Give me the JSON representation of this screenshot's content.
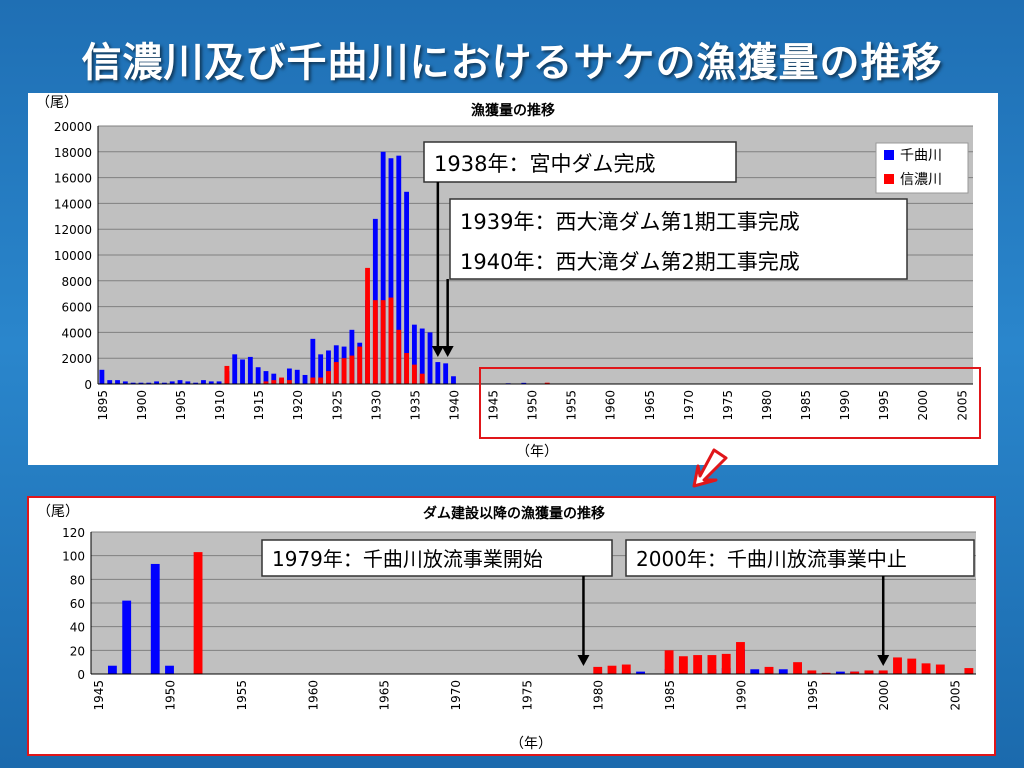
{
  "slide": {
    "title": "信濃川及び千曲川におけるサケの漁獲量の推移"
  },
  "colors": {
    "chikuma": "#0000ff",
    "shinano": "#ff0000",
    "plot_bg": "#c0c0c0",
    "highlight_border": "#e0161a"
  },
  "chart_data": [
    {
      "type": "bar",
      "title": "漁獲量の推移",
      "ylabel": "（尾）",
      "xlabel": "（年）",
      "ylim": [
        0,
        20000
      ],
      "yticks": [
        "0",
        "2000",
        "4000",
        "6000",
        "8000",
        "10000",
        "12000",
        "14000",
        "16000",
        "18000",
        "20000"
      ],
      "x_range": [
        1895,
        2006
      ],
      "x_tick_labels": [
        "1895",
        "1900",
        "1905",
        "1910",
        "1915",
        "1920",
        "1925",
        "1930",
        "1935",
        "1940",
        "1945",
        "1950",
        "1955",
        "1960",
        "1965",
        "1970",
        "1975",
        "1980",
        "1985",
        "1990",
        "1995",
        "2000",
        "2005"
      ],
      "legend": {
        "position": "top-right",
        "items": [
          "千曲川",
          "信濃川"
        ]
      },
      "annotations": [
        "1938年：宮中ダム完成",
        "1939年：西大滝ダム第1期工事完成",
        "1940年：西大滝ダム第2期工事完成"
      ],
      "series": [
        {
          "name": "千曲川",
          "color": "#0000ff",
          "points": [
            [
              1895,
              1100
            ],
            [
              1896,
              300
            ],
            [
              1897,
              300
            ],
            [
              1898,
              200
            ],
            [
              1899,
              100
            ],
            [
              1900,
              100
            ],
            [
              1901,
              100
            ],
            [
              1902,
              200
            ],
            [
              1903,
              100
            ],
            [
              1904,
              200
            ],
            [
              1905,
              300
            ],
            [
              1906,
              200
            ],
            [
              1907,
              100
            ],
            [
              1908,
              300
            ],
            [
              1909,
              200
            ],
            [
              1910,
              200
            ],
            [
              1911,
              1000
            ],
            [
              1912,
              2300
            ],
            [
              1913,
              1900
            ],
            [
              1914,
              2100
            ],
            [
              1915,
              1300
            ],
            [
              1916,
              1000
            ],
            [
              1917,
              800
            ],
            [
              1918,
              400
            ],
            [
              1919,
              1200
            ],
            [
              1920,
              1100
            ],
            [
              1921,
              700
            ],
            [
              1922,
              3500
            ],
            [
              1923,
              2300
            ],
            [
              1924,
              2600
            ],
            [
              1925,
              3000
            ],
            [
              1926,
              2900
            ],
            [
              1927,
              4200
            ],
            [
              1928,
              3200
            ],
            [
              1929,
              6500
            ],
            [
              1930,
              12800
            ],
            [
              1931,
              18000
            ],
            [
              1932,
              17500
            ],
            [
              1933,
              17700
            ],
            [
              1934,
              14900
            ],
            [
              1935,
              4600
            ],
            [
              1936,
              4300
            ],
            [
              1937,
              4000
            ],
            [
              1938,
              1700
            ],
            [
              1939,
              1600
            ],
            [
              1940,
              600
            ],
            [
              1947,
              60
            ],
            [
              1949,
              90
            ],
            [
              1950,
              10
            ]
          ]
        },
        {
          "name": "信濃川",
          "color": "#ff0000",
          "points": [
            [
              1911,
              1400
            ],
            [
              1916,
              200
            ],
            [
              1917,
              300
            ],
            [
              1918,
              500
            ],
            [
              1919,
              300
            ],
            [
              1922,
              500
            ],
            [
              1923,
              500
            ],
            [
              1924,
              1000
            ],
            [
              1925,
              1700
            ],
            [
              1926,
              2000
            ],
            [
              1927,
              2200
            ],
            [
              1928,
              2900
            ],
            [
              1929,
              9000
            ],
            [
              1930,
              6500
            ],
            [
              1931,
              6500
            ],
            [
              1932,
              6700
            ],
            [
              1933,
              4200
            ],
            [
              1934,
              2400
            ],
            [
              1935,
              1500
            ],
            [
              1936,
              800
            ],
            [
              1952,
              100
            ]
          ]
        }
      ]
    },
    {
      "type": "bar",
      "title": "ダム建設以降の漁獲量の推移",
      "ylabel": "（尾）",
      "xlabel": "（年）",
      "ylim": [
        0,
        120
      ],
      "yticks": [
        "0",
        "20",
        "40",
        "60",
        "80",
        "100",
        "120"
      ],
      "x_range": [
        1945,
        2006
      ],
      "x_tick_labels": [
        "1945",
        "1950",
        "1955",
        "1960",
        "1965",
        "1970",
        "1975",
        "1980",
        "1985",
        "1990",
        "1995",
        "2000",
        "2005"
      ],
      "annotations": [
        "1979年：千曲川放流事業開始",
        "2000年：千曲川放流事業中止"
      ],
      "series": [
        {
          "name": "千曲川",
          "color": "#0000ff",
          "points": [
            [
              1946,
              7
            ],
            [
              1947,
              62
            ],
            [
              1949,
              93
            ],
            [
              1950,
              7
            ],
            [
              1982,
              2
            ],
            [
              1983,
              2
            ],
            [
              1985,
              4
            ],
            [
              1988,
              4
            ],
            [
              1989,
              5
            ],
            [
              1990,
              21
            ],
            [
              1991,
              4
            ],
            [
              1993,
              4
            ],
            [
              1997,
              2
            ],
            [
              1998,
              2
            ],
            [
              1999,
              2
            ],
            [
              2000,
              2
            ]
          ]
        },
        {
          "name": "信濃川",
          "color": "#ff0000",
          "points": [
            [
              1952,
              103
            ],
            [
              1980,
              6
            ],
            [
              1981,
              7
            ],
            [
              1982,
              8
            ],
            [
              1985,
              20
            ],
            [
              1986,
              15
            ],
            [
              1987,
              16
            ],
            [
              1988,
              16
            ],
            [
              1989,
              17
            ],
            [
              1990,
              27
            ],
            [
              1992,
              6
            ],
            [
              1994,
              10
            ],
            [
              1995,
              3
            ],
            [
              1996,
              1
            ],
            [
              1998,
              2
            ],
            [
              1999,
              3
            ],
            [
              2000,
              3
            ],
            [
              2001,
              14
            ],
            [
              2002,
              13
            ],
            [
              2003,
              9
            ],
            [
              2004,
              8
            ],
            [
              2006,
              5
            ]
          ]
        }
      ]
    }
  ]
}
